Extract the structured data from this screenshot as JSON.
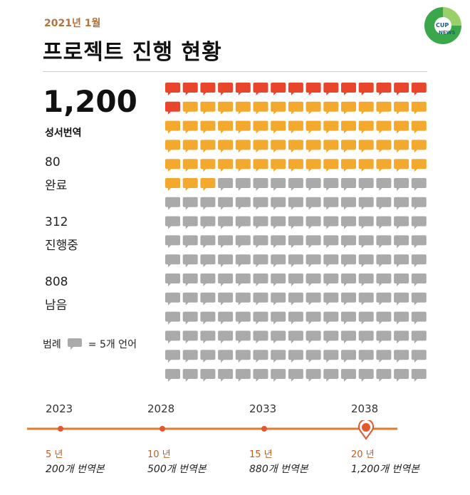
{
  "header": {
    "date": "2021년 1월",
    "title": "프로젝트 진행 현황"
  },
  "summary": {
    "total_value": "1,200",
    "total_label": "성서번역",
    "stats": [
      {
        "value": "80",
        "label": "완료",
        "color": "#e8452c"
      },
      {
        "value": "312",
        "label": "진행중",
        "color": "#f2a92e"
      },
      {
        "value": "808",
        "label": "남음",
        "color": "#aaaaaa"
      }
    ],
    "legend": {
      "prefix": "범례",
      "text": "= 5개 언어"
    }
  },
  "chart_data": {
    "type": "waffle",
    "total": 1200,
    "unit_value": 5,
    "columns": 15,
    "rows": 16,
    "segments": [
      {
        "name": "완료",
        "value": 80,
        "icons": 16,
        "color": "#e8452c"
      },
      {
        "name": "진행중",
        "value": 312,
        "icons": 63,
        "color": "#f2a92e"
      },
      {
        "name": "남음",
        "value": 808,
        "icons": 161,
        "color": "#aaaaaa"
      }
    ]
  },
  "timeline": {
    "line_color": "#e07b2e",
    "points": [
      {
        "year": "2023",
        "step": "5 년",
        "count": "200개 번역본"
      },
      {
        "year": "2028",
        "step": "10 년",
        "count": "500개 번역본"
      },
      {
        "year": "2033",
        "step": "15 년",
        "count": "880개 번역본"
      },
      {
        "year": "2038",
        "step": "20 년",
        "count": "1,200개 번역본"
      }
    ]
  },
  "logo": {
    "top_text": "CUP",
    "bottom_text": "NEWS"
  }
}
